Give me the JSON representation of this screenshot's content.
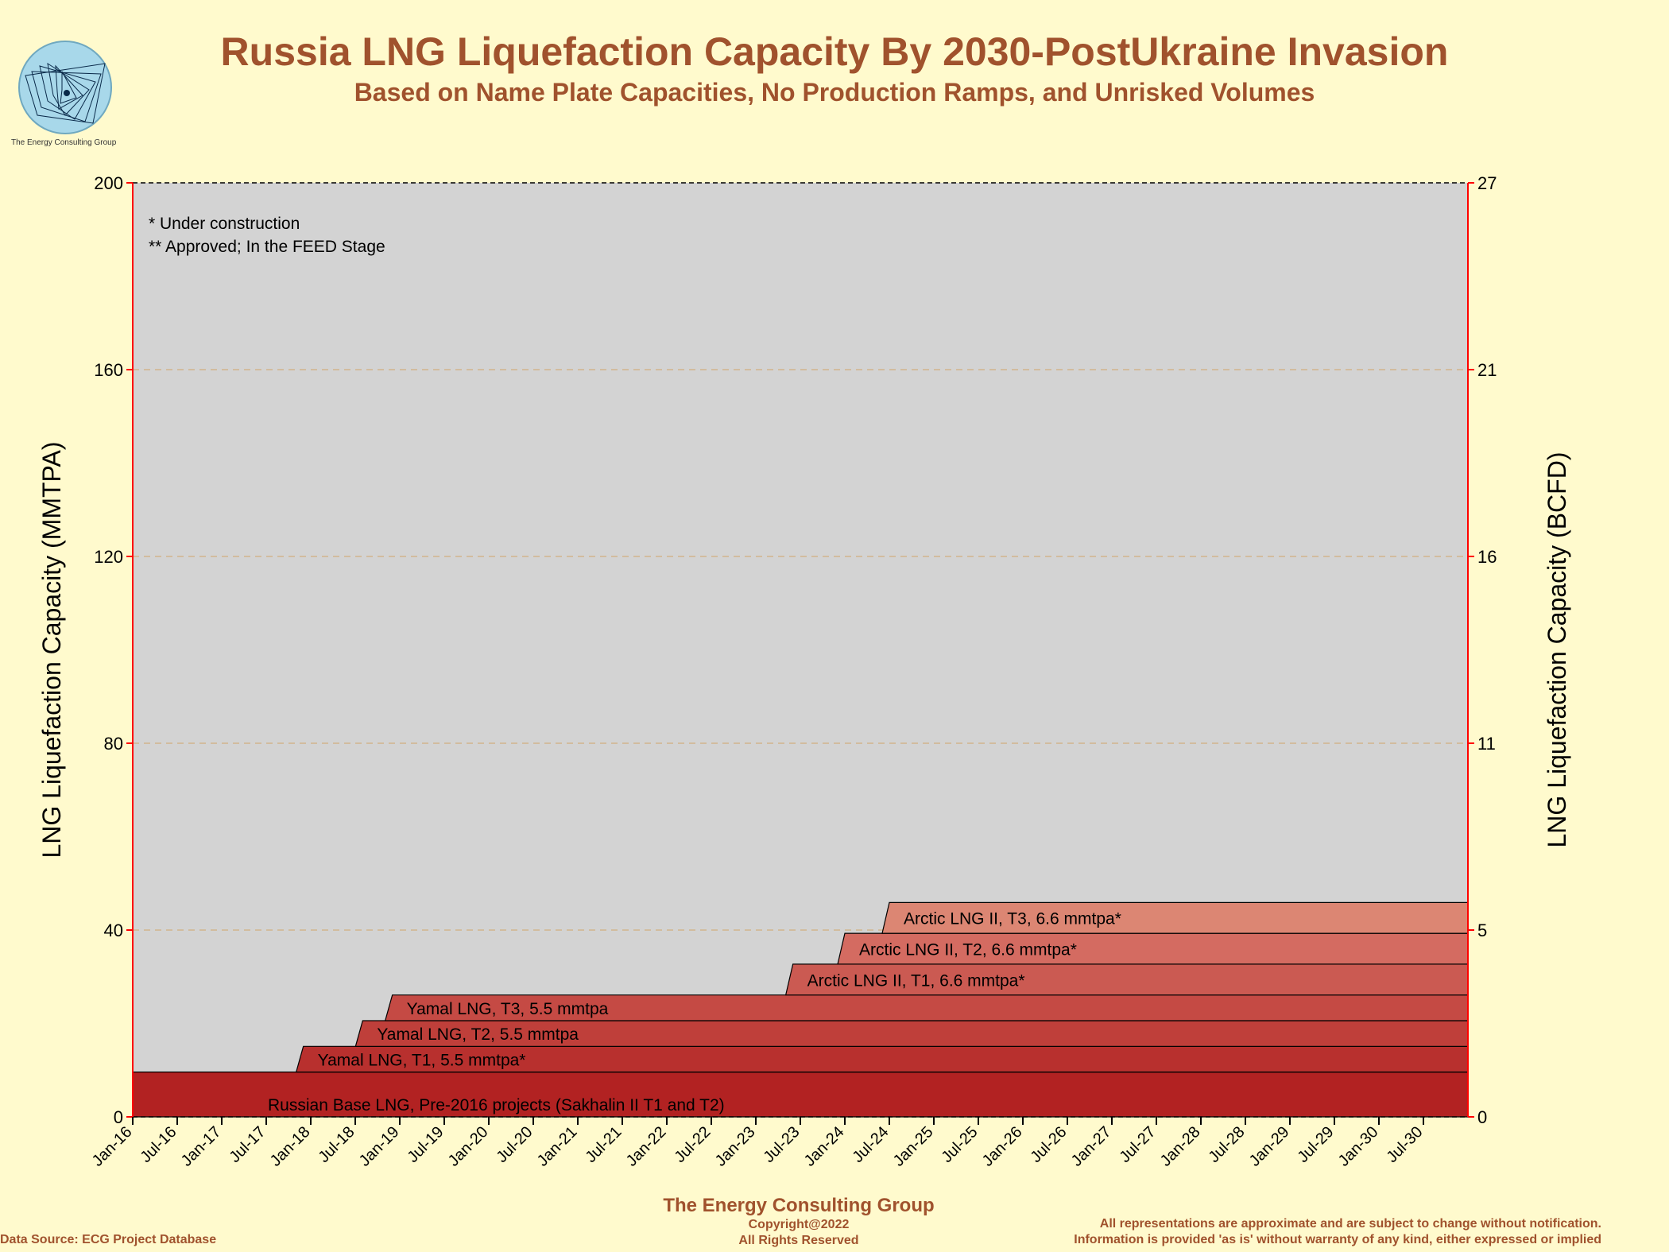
{
  "logo": {
    "caption": "The Energy Consulting Group"
  },
  "header": {
    "title": "Russia LNG Liquefaction Capacity By 2030-PostUkraine Invasion",
    "subtitle": "Based on Name Plate Capacities, No Production Ramps, and Unrisked Volumes"
  },
  "footer": {
    "company": "The Energy Consulting Group",
    "copyright": "Copyright@2022",
    "rights": "All Rights Reserved",
    "source": "Data Source: ECG Project Database",
    "disclaimer_1": "All representations are approximate and are subject to change without notification.",
    "disclaimer_2": "Information is provided 'as is' without warranty of any kind, either expressed or implied"
  },
  "colors": {
    "background": "#fffacd",
    "plot_background": "#d3d3d3",
    "accent": "#a0522d",
    "axis": "#ff0000",
    "grid": "#d2b48c"
  },
  "chart_data": {
    "type": "area",
    "stacked": true,
    "step": true,
    "x_start": "Jan-16",
    "x_end": "Dec-30",
    "x_ticks": [
      "Jan-16",
      "Jul-16",
      "Jan-17",
      "Jul-17",
      "Jan-18",
      "Jul-18",
      "Jan-19",
      "Jul-19",
      "Jan-20",
      "Jul-20",
      "Jan-21",
      "Jul-21",
      "Jan-22",
      "Jul-22",
      "Jan-23",
      "Jul-23",
      "Jan-24",
      "Jul-24",
      "Jan-25",
      "Jul-25",
      "Jan-26",
      "Jul-26",
      "Jan-27",
      "Jul-27",
      "Jan-28",
      "Jul-28",
      "Jan-29",
      "Jul-29",
      "Jan-30",
      "Jul-30"
    ],
    "ylabel": "LNG Liquefaction Capacity (MMTPA)",
    "y2label": "LNG Liquefaction Capacity (BCFD)",
    "ylim": [
      0,
      200
    ],
    "y_ticks": [
      0,
      40,
      80,
      120,
      160,
      200
    ],
    "y2_ticks": [
      "0",
      "5",
      "11",
      "16",
      "21",
      "27"
    ],
    "grid": true,
    "notes": [
      "* Under construction",
      "** Approved; In the FEED Stage"
    ],
    "series": [
      {
        "label": "Russian Base LNG, Pre-2016 projects (Sakhalin II T1 and T2)",
        "start": "Jan-16",
        "value": 9.6,
        "color": "#b22222"
      },
      {
        "label": "Yamal LNG, T1, 5.5 mmtpa*",
        "start": "Dec-17",
        "value": 5.5,
        "color": "#b8302e"
      },
      {
        "label": "Yamal LNG, T2, 5.5 mmtpa",
        "start": "Aug-18",
        "value": 5.5,
        "color": "#bf3f3a"
      },
      {
        "label": "Yamal LNG, T3, 5.5 mmtpa",
        "start": "Dec-18",
        "value": 5.5,
        "color": "#c54a44"
      },
      {
        "label": "Arctic LNG II, T1, 6.6 mmtpa*",
        "start": "Jun-23",
        "value": 6.6,
        "color": "#cb5a52"
      },
      {
        "label": "Arctic LNG II, T2, 6.6 mmtpa*",
        "start": "Jan-24",
        "value": 6.6,
        "color": "#d46b61"
      },
      {
        "label": "Arctic LNG II, T3, 6.6 mmtpa*",
        "start": "Jul-24",
        "value": 6.6,
        "color": "#dc8673"
      }
    ]
  }
}
